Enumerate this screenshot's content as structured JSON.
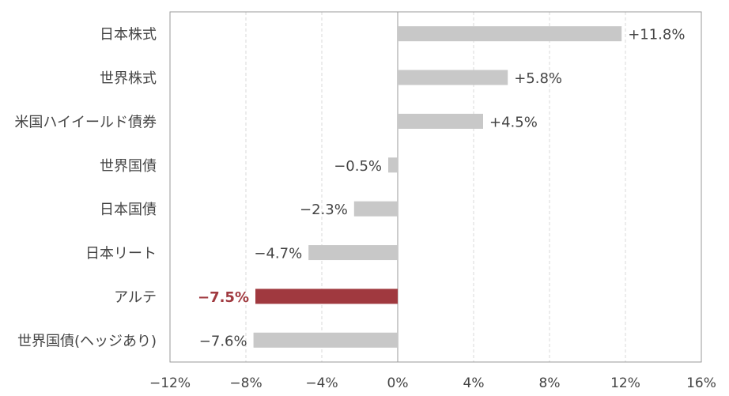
{
  "chart_data": {
    "type": "bar",
    "orientation": "horizontal",
    "categories": [
      "日本株式",
      "世界株式",
      "米国ハイイールド債券",
      "世界国債",
      "日本国債",
      "日本リート",
      "アルテ",
      "世界国債(ヘッジあり)"
    ],
    "values": [
      11.8,
      5.8,
      4.5,
      -0.5,
      -2.3,
      -4.7,
      -7.5,
      -7.6
    ],
    "value_labels": [
      "+11.8%",
      "+5.8%",
      "+4.5%",
      "−0.5%",
      "−2.3%",
      "−4.7%",
      "−7.5%",
      "−7.6%"
    ],
    "highlight_index": 6,
    "xlim": [
      -12,
      16
    ],
    "x_ticks": [
      -12,
      -8,
      -4,
      0,
      4,
      8,
      12,
      16
    ],
    "x_tick_labels": [
      "−12%",
      "−8%",
      "−4%",
      "0%",
      "4%",
      "8%",
      "12%",
      "16%"
    ],
    "grid": "vertical-dashed",
    "colors": {
      "bar": "#c8c8c8",
      "highlight": "#a0393f",
      "highlight_label": "#a0393f",
      "text": "#444444",
      "axis": "#999999",
      "grid": "#d9d9d9"
    }
  }
}
